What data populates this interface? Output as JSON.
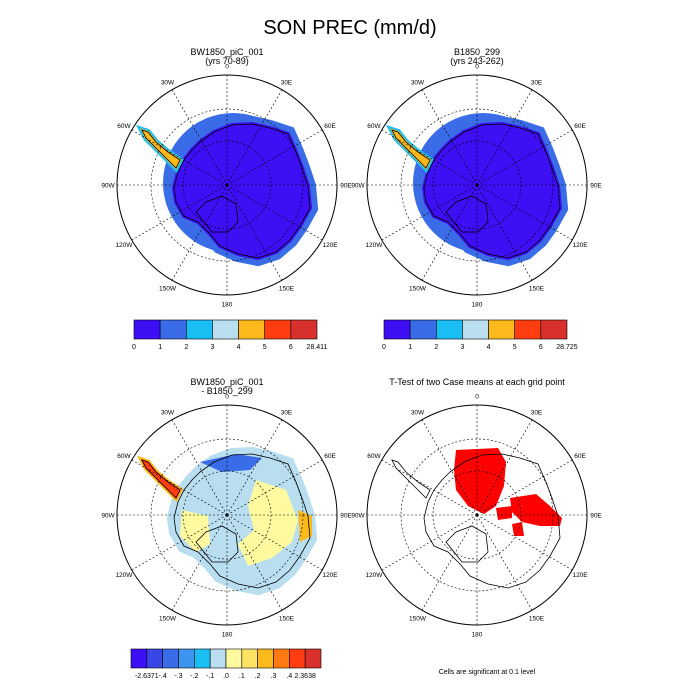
{
  "title": "SON PREC (mm/d)",
  "panels": [
    {
      "id": "p1",
      "title1": "BW1850_piC_001",
      "title2": "(yrs 70-89)"
    },
    {
      "id": "p2",
      "title1": "B1850_299",
      "title2": "(yrs 243-262)"
    },
    {
      "id": "p3",
      "title1": "BW1850_piC_001",
      "title2": "- B1850_299"
    },
    {
      "id": "p4",
      "title1": "T-Test of two Case means at each grid point",
      "title2": ""
    }
  ],
  "map_labels": {
    "lon": [
      "0",
      "30E",
      "60E",
      "90E",
      "120E",
      "150E",
      "180",
      "150W",
      "120W",
      "90W",
      "60W",
      "30W"
    ]
  },
  "colorbars": {
    "abs1": {
      "colors": [
        "#3e0ef5",
        "#3a6ce8",
        "#19bff2",
        "#b9def0",
        "#fbb91c",
        "#ff3d10",
        "#d8302c"
      ],
      "labels": [
        "0",
        "1",
        "2",
        "3",
        "4",
        "5",
        "6",
        "28.411"
      ]
    },
    "abs2": {
      "colors": [
        "#3e0ef5",
        "#3a6ce8",
        "#19bff2",
        "#b9def0",
        "#fbb91c",
        "#ff3d10",
        "#d8302c"
      ],
      "labels": [
        "0",
        "1",
        "2",
        "3",
        "4",
        "5",
        "6",
        "28.725"
      ]
    },
    "diff": {
      "colors": [
        "#3e0ef5",
        "#3847e6",
        "#3a6ce8",
        "#3b94ee",
        "#19bff2",
        "#b9def0",
        "#fffaa0",
        "#fde263",
        "#fbb91c",
        "#ff7a10",
        "#ff3d10",
        "#d8302c"
      ],
      "labels": [
        "-2.6371",
        "-.4",
        "-.3",
        "-.2",
        "-.1",
        ".0",
        ".1",
        ".2",
        ".3",
        ".4",
        "2.3638"
      ]
    }
  },
  "note": "Cells are significant at 0.1 level",
  "chart_data": [
    {
      "type": "heatmap",
      "projection": "south-polar-stereographic",
      "title": "BW1850_piC_001",
      "subtitle": "(yrs 70-89)",
      "levels": [
        0,
        1,
        2,
        3,
        4,
        5,
        6
      ],
      "max": 28.411,
      "dominant_range": [
        0,
        1
      ]
    },
    {
      "type": "heatmap",
      "projection": "south-polar-stereographic",
      "title": "B1850_299",
      "subtitle": "(yrs 243-262)",
      "levels": [
        0,
        1,
        2,
        3,
        4,
        5,
        6
      ],
      "max": 28.725,
      "dominant_range": [
        0,
        1
      ]
    },
    {
      "type": "heatmap",
      "projection": "south-polar-stereographic",
      "title": "BW1850_piC_001",
      "subtitle": "- B1850_299",
      "levels": [
        -0.4,
        -0.3,
        -0.2,
        -0.1,
        0,
        0.1,
        0.2,
        0.3,
        0.4
      ],
      "min": -2.6371,
      "max": 2.3638
    },
    {
      "type": "heatmap",
      "projection": "south-polar-stereographic",
      "title": "T-Test of two Case means at each grid point",
      "significance_level": 0.1,
      "significant_color": "#ff0000"
    }
  ]
}
